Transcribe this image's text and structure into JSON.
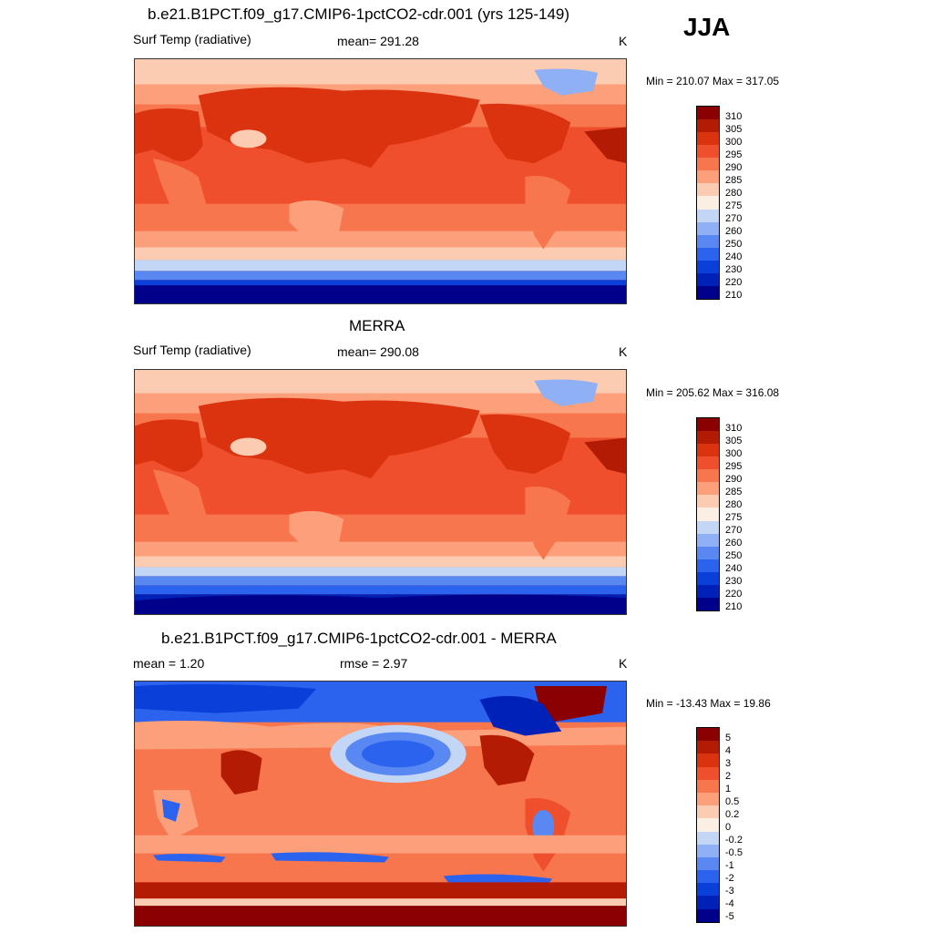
{
  "season": "JJA",
  "colors": {
    "abs_scale": [
      "#00008b",
      "#0021b8",
      "#0a3fd9",
      "#2c63ee",
      "#5a88f2",
      "#8fb0f4",
      "#c4d6f6",
      "#fbeee3",
      "#fcccb2",
      "#fc9f7b",
      "#f7764e",
      "#ef4f2c",
      "#db3210",
      "#b31b05",
      "#8b0000"
    ],
    "diff_scale": [
      "#00008b",
      "#0021b8",
      "#0a3fd9",
      "#2c63ee",
      "#5a88f2",
      "#8fb0f4",
      "#c4d6f6",
      "#fbeee3",
      "#fcccb2",
      "#fc9f7b",
      "#f7764e",
      "#ef4f2c",
      "#db3210",
      "#b31b05",
      "#8b0000"
    ]
  },
  "panels": [
    {
      "title": "b.e21.B1PCT.f09_g17.CMIP6-1pctCO2-cdr.001 (yrs 125-149)",
      "left_label": "Surf Temp (radiative)",
      "center_label": "mean= 291.28",
      "units": "K",
      "minmax": "Min = 210.07 Max = 317.05",
      "colorbar_labels": [
        "310",
        "305",
        "300",
        "295",
        "290",
        "285",
        "280",
        "275",
        "270",
        "260",
        "250",
        "240",
        "230",
        "220",
        "210"
      ]
    },
    {
      "title": "MERRA",
      "left_label": "Surf Temp (radiative)",
      "center_label": "mean= 290.08",
      "units": "K",
      "minmax": "Min = 205.62 Max = 316.08",
      "colorbar_labels": [
        "310",
        "305",
        "300",
        "295",
        "290",
        "285",
        "280",
        "275",
        "270",
        "260",
        "250",
        "240",
        "230",
        "220",
        "210"
      ]
    },
    {
      "title": "b.e21.B1PCT.f09_g17.CMIP6-1pctCO2-cdr.001 - MERRA",
      "left_label": "mean =   1.20",
      "center_label": "rmse =   2.97",
      "units": "K",
      "minmax": "Min = -13.43 Max =  19.86",
      "colorbar_labels": [
        "5",
        "4",
        "3",
        "2",
        "1",
        "0.5",
        "0.2",
        "0",
        "-0.2",
        "-0.5",
        "-1",
        "-2",
        "-3",
        "-4",
        "-5"
      ]
    }
  ]
}
